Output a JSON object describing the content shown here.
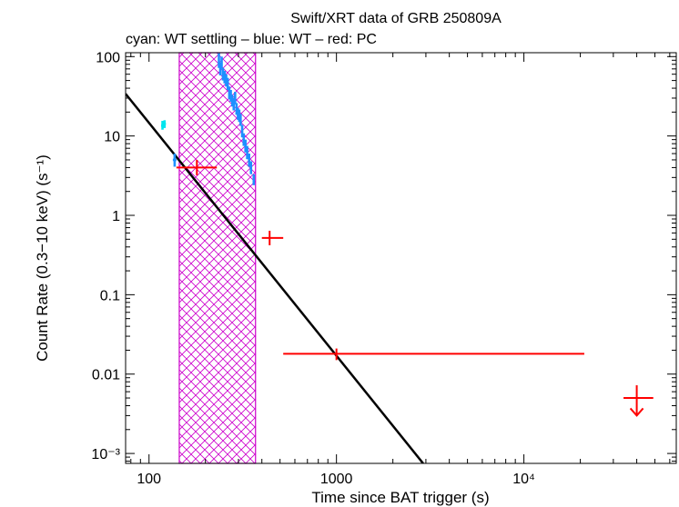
{
  "chart_data": {
    "type": "scatter",
    "title": "Swift/XRT data of GRB 250809A",
    "subtitle": "cyan: WT settling – blue: WT – red: PC",
    "xlabel": "Time since BAT trigger (s)",
    "ylabel": "Count Rate (0.3−10 keV) (s⁻¹)",
    "xscale": "log",
    "yscale": "log",
    "xlim": [
      75,
      65000
    ],
    "ylim": [
      0.00075,
      112
    ],
    "x_ticks": [
      {
        "value": 100,
        "label": "100"
      },
      {
        "value": 1000,
        "label": "1000"
      },
      {
        "value": 10000,
        "label": "10⁴"
      }
    ],
    "y_ticks": [
      {
        "value": 0.001,
        "label": "10⁻³"
      },
      {
        "value": 0.01,
        "label": "0.01"
      },
      {
        "value": 0.1,
        "label": "0.1"
      },
      {
        "value": 1,
        "label": "1"
      },
      {
        "value": 10,
        "label": "10"
      },
      {
        "value": 100,
        "label": "100"
      }
    ],
    "colors": {
      "wt_settling": "#00e5ee",
      "wt": "#1e90ff",
      "pc": "#ff0000",
      "model": "#000000",
      "band": "#cc00cc"
    },
    "shaded_interval": {
      "x0": 145,
      "x1": 370,
      "label": "hatched interval"
    },
    "model_line": {
      "type": "power-law",
      "points": [
        [
          75,
          34
        ],
        [
          2900,
          0.00075
        ]
      ]
    },
    "series": [
      {
        "name": "WT settling",
        "color_key": "wt_settling",
        "points": [
          {
            "x": 118,
            "y": 13.5,
            "xlo": 116,
            "xhi": 120,
            "ylo": 12,
            "yhi": 15.5
          },
          {
            "x": 121,
            "y": 14.2,
            "xlo": 119,
            "xhi": 123,
            "ylo": 12.6,
            "yhi": 15.8
          }
        ]
      },
      {
        "name": "WT",
        "color_key": "wt",
        "points": [
          {
            "x": 137,
            "y": 5.0,
            "xlo": 134,
            "xhi": 140,
            "ylo": 4.1,
            "yhi": 6.0
          },
          {
            "x": 236,
            "y": 90,
            "xlo": 234,
            "xhi": 238,
            "ylo": 72,
            "yhi": 110
          },
          {
            "x": 240,
            "y": 70,
            "xlo": 238,
            "xhi": 242,
            "ylo": 58,
            "yhi": 84
          },
          {
            "x": 244,
            "y": 85,
            "xlo": 242,
            "xhi": 246,
            "ylo": 70,
            "yhi": 100
          },
          {
            "x": 248,
            "y": 60,
            "xlo": 246,
            "xhi": 250,
            "ylo": 50,
            "yhi": 72
          },
          {
            "x": 253,
            "y": 55,
            "xlo": 251,
            "xhi": 255,
            "ylo": 46,
            "yhi": 66
          },
          {
            "x": 258,
            "y": 50,
            "xlo": 256,
            "xhi": 260,
            "ylo": 42,
            "yhi": 60
          },
          {
            "x": 263,
            "y": 45,
            "xlo": 261,
            "xhi": 265,
            "ylo": 38,
            "yhi": 54
          },
          {
            "x": 268,
            "y": 35,
            "xlo": 266,
            "xhi": 270,
            "ylo": 29,
            "yhi": 42
          },
          {
            "x": 273,
            "y": 32,
            "xlo": 271,
            "xhi": 275,
            "ylo": 27,
            "yhi": 38
          },
          {
            "x": 278,
            "y": 28,
            "xlo": 276,
            "xhi": 280,
            "ylo": 23.5,
            "yhi": 33
          },
          {
            "x": 283,
            "y": 25,
            "xlo": 281,
            "xhi": 285,
            "ylo": 21,
            "yhi": 30
          },
          {
            "x": 288,
            "y": 30,
            "xlo": 286,
            "xhi": 290,
            "ylo": 25,
            "yhi": 36
          },
          {
            "x": 293,
            "y": 22,
            "xlo": 291,
            "xhi": 295,
            "ylo": 18.5,
            "yhi": 26
          },
          {
            "x": 298,
            "y": 19,
            "xlo": 296,
            "xhi": 300,
            "ylo": 16,
            "yhi": 22.5
          },
          {
            "x": 303,
            "y": 18,
            "xlo": 301,
            "xhi": 305,
            "ylo": 15,
            "yhi": 21.5
          },
          {
            "x": 308,
            "y": 16,
            "xlo": 306,
            "xhi": 310,
            "ylo": 13.4,
            "yhi": 19
          },
          {
            "x": 314,
            "y": 11.5,
            "xlo": 312,
            "xhi": 316,
            "ylo": 9.6,
            "yhi": 13.8
          },
          {
            "x": 320,
            "y": 9.0,
            "xlo": 318,
            "xhi": 322,
            "ylo": 7.5,
            "yhi": 10.8
          },
          {
            "x": 327,
            "y": 7.5,
            "xlo": 325,
            "xhi": 329,
            "ylo": 6.2,
            "yhi": 9.0
          },
          {
            "x": 334,
            "y": 6.2,
            "xlo": 332,
            "xhi": 336,
            "ylo": 5.1,
            "yhi": 7.5
          },
          {
            "x": 342,
            "y": 5.0,
            "xlo": 340,
            "xhi": 344,
            "ylo": 4.1,
            "yhi": 6.0
          },
          {
            "x": 350,
            "y": 4.0,
            "xlo": 348,
            "xhi": 352,
            "ylo": 3.3,
            "yhi": 4.8
          },
          {
            "x": 362,
            "y": 2.8,
            "xlo": 359,
            "xhi": 366,
            "ylo": 2.4,
            "yhi": 3.3
          }
        ]
      },
      {
        "name": "PC",
        "color_key": "pc",
        "points": [
          {
            "x": 180,
            "y": 4.0,
            "xlo": 140,
            "xhi": 230,
            "ylo": 3.2,
            "yhi": 5.0
          },
          {
            "x": 440,
            "y": 0.52,
            "xlo": 400,
            "xhi": 520,
            "ylo": 0.42,
            "yhi": 0.64
          },
          {
            "x": 1000,
            "y": 0.018,
            "xlo": 520,
            "xhi": 21000,
            "ylo": 0.015,
            "yhi": 0.021
          }
        ]
      }
    ],
    "upper_limits": [
      {
        "name": "PC upper limit",
        "color_key": "pc",
        "x": 40000,
        "y": 0.005,
        "xlo": 34000,
        "xhi": 49000,
        "y_arrow_to": 0.003
      }
    ]
  }
}
